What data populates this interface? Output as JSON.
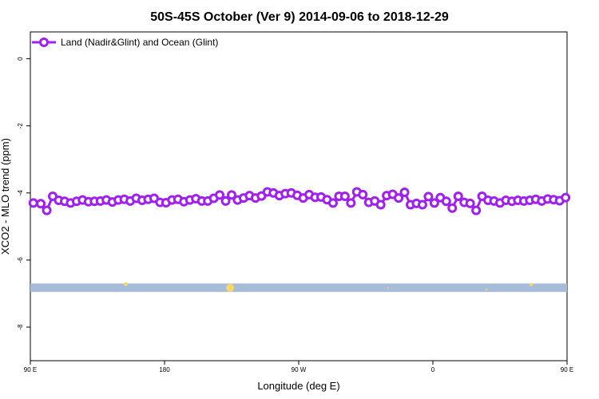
{
  "chart_data": {
    "type": "line",
    "title": "50S-45S October (Ver 9)   2014-09-06 to 2018-12-29",
    "xlabel": "Longitude (deg E)",
    "ylabel": "XCO2 - MLO trend (ppm)",
    "xlim": [
      90,
      450
    ],
    "ylim": [
      -9.0,
      0.8
    ],
    "x_ticks": [
      {
        "value": 90,
        "label": "90 E"
      },
      {
        "value": 180,
        "label": "180"
      },
      {
        "value": 270,
        "label": "90 W"
      },
      {
        "value": 360,
        "label": "0"
      },
      {
        "value": 450,
        "label": "90 E"
      },
      {
        "value": 540,
        "label": "180"
      }
    ],
    "y_ticks": [
      {
        "value": 0,
        "label": "0"
      },
      {
        "value": -2,
        "label": "-2"
      },
      {
        "value": -4,
        "label": "-4"
      },
      {
        "value": -6,
        "label": "-6"
      },
      {
        "value": -8,
        "label": "-8"
      }
    ],
    "grid": false,
    "legend": {
      "position": "top-left"
    },
    "series": [
      {
        "name": "Land (Nadir&Glint) and Ocean (Glint)",
        "color": "#a020f0",
        "x": [
          92,
          97,
          101,
          105,
          109,
          113,
          117,
          121,
          125,
          129,
          133,
          137,
          141,
          145,
          149,
          153,
          157,
          161,
          165,
          169,
          173,
          177,
          181,
          185,
          189,
          193,
          197,
          201,
          205,
          209,
          213,
          217,
          221,
          225,
          229,
          233,
          237,
          241,
          245,
          249,
          253,
          257,
          261,
          265,
          269,
          273,
          277,
          281,
          285,
          289,
          293,
          297,
          301,
          305,
          309,
          313,
          317,
          321,
          325,
          329,
          333,
          337,
          341,
          345,
          349,
          353,
          357,
          361,
          365,
          369,
          373,
          377,
          381,
          385,
          389,
          393,
          397,
          401,
          405,
          409,
          413,
          417,
          421,
          425,
          429,
          433,
          437,
          441,
          445,
          449
        ],
        "y": [
          -4.3,
          -4.32,
          -4.52,
          -4.1,
          -4.22,
          -4.25,
          -4.3,
          -4.25,
          -4.21,
          -4.26,
          -4.25,
          -4.24,
          -4.21,
          -4.27,
          -4.21,
          -4.19,
          -4.24,
          -4.16,
          -4.22,
          -4.19,
          -4.16,
          -4.28,
          -4.29,
          -4.21,
          -4.19,
          -4.26,
          -4.21,
          -4.17,
          -4.24,
          -4.24,
          -4.16,
          -4.06,
          -4.24,
          -4.06,
          -4.21,
          -4.15,
          -4.08,
          -4.15,
          -4.09,
          -3.97,
          -4.0,
          -4.08,
          -4.02,
          -4.0,
          -4.07,
          -4.15,
          -4.05,
          -4.13,
          -4.12,
          -4.2,
          -4.3,
          -4.1,
          -4.1,
          -4.3,
          -3.97,
          -4.05,
          -4.28,
          -4.24,
          -4.35,
          -4.08,
          -4.04,
          -4.15,
          -3.98,
          -4.35,
          -4.31,
          -4.35,
          -4.11,
          -4.3,
          -4.14,
          -4.25,
          -4.45,
          -4.1,
          -4.28,
          -4.31,
          -4.52,
          -4.1,
          -4.22,
          -4.24,
          -4.3,
          -4.22,
          -4.25,
          -4.22,
          -4.24,
          -4.22,
          -4.19,
          -4.24,
          -4.18,
          -4.2,
          -4.23,
          -4.14
        ]
      }
    ],
    "band": {
      "y_from": -6.95,
      "y_to": -6.7,
      "color": "#a7bcd9"
    },
    "markers": [
      {
        "x": 154,
        "y": -6.72,
        "size": 2.5,
        "color": "#f5d76e"
      },
      {
        "x": 224,
        "y": -6.83,
        "size": 5,
        "color": "#f5d76e"
      },
      {
        "x": 330,
        "y": -6.83,
        "size": 1,
        "color": "#f5d76e"
      },
      {
        "x": 396,
        "y": -6.88,
        "size": 1.2,
        "color": "#f5d76e"
      },
      {
        "x": 426,
        "y": -6.73,
        "size": 2,
        "color": "#f5d76e"
      }
    ]
  }
}
